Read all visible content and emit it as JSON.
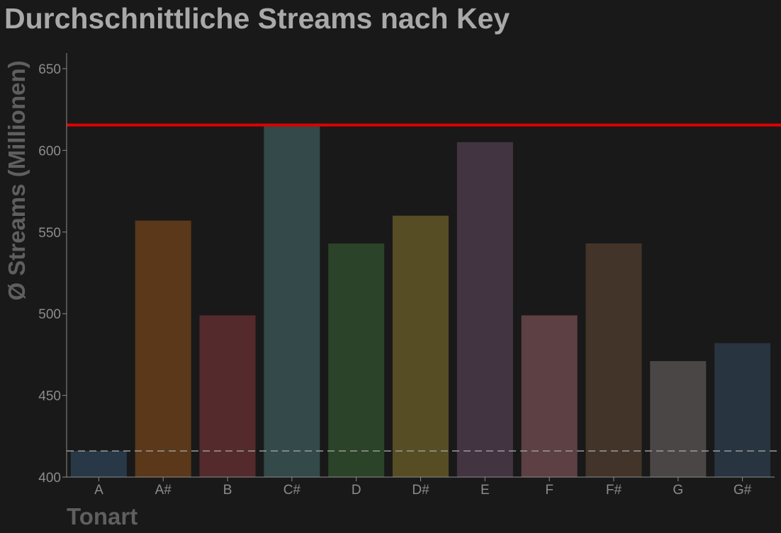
{
  "chart_data": {
    "type": "bar",
    "title": "Durchschnittliche Streams nach Key",
    "xlabel": "Tonart",
    "ylabel": "Ø Streams (Millionen)",
    "ylim": [
      400,
      660
    ],
    "yticks": [
      400,
      450,
      500,
      550,
      600,
      650
    ],
    "categories": [
      "A",
      "A#",
      "B",
      "C#",
      "D",
      "D#",
      "E",
      "F",
      "F#",
      "G",
      "G#"
    ],
    "values": [
      416,
      557,
      499,
      615,
      543,
      560,
      605,
      499,
      543,
      471,
      482
    ],
    "colors": [
      "#283847",
      "#5b381a",
      "#552a2d",
      "#33494a",
      "#2b4328",
      "#574d25",
      "#433442",
      "#5d4043",
      "#433429",
      "#4a4645",
      "#283440"
    ],
    "reference_lines": [
      {
        "value": 615.5,
        "style": "solid",
        "color": "#e00000"
      },
      {
        "value": 416,
        "style": "dashed",
        "color": "#9a9a9a"
      }
    ],
    "grid": false,
    "legend": "none"
  }
}
